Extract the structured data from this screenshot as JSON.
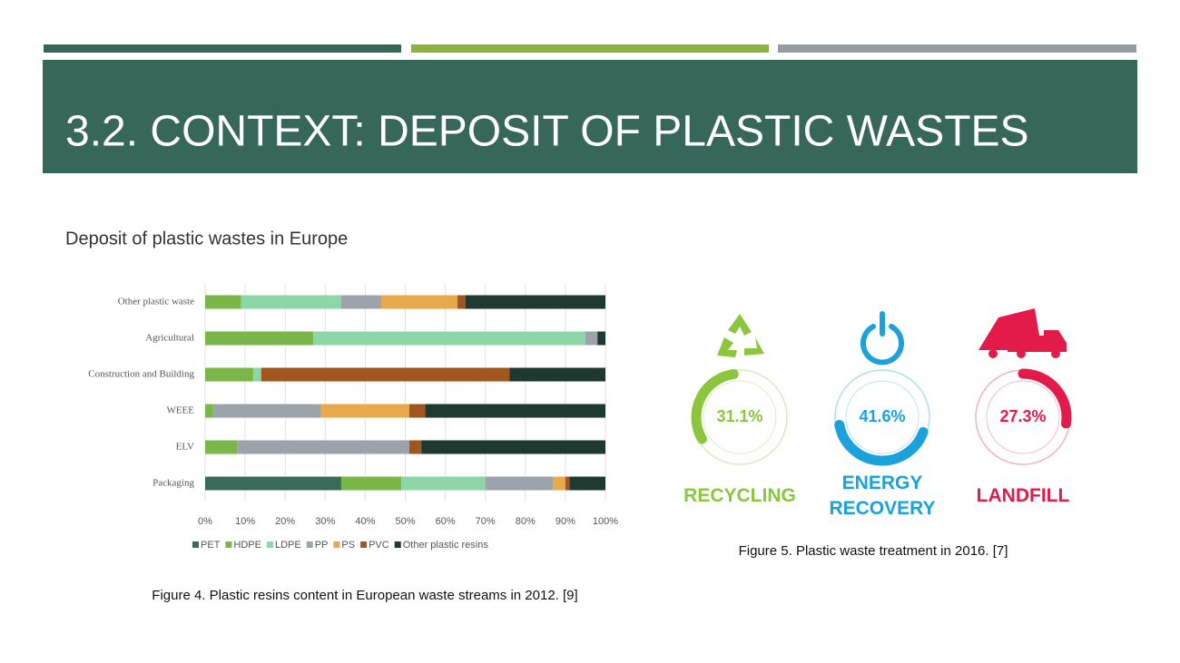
{
  "header": {
    "title": "3.2. CONTEXT: DEPOSIT OF PLASTIC WASTES"
  },
  "subtitle": "Deposit of plastic wastes in Europe",
  "chart_data": [
    {
      "type": "bar",
      "orientation": "horizontal",
      "stacked": true,
      "categories": [
        "Other plastic waste",
        "Agricultural",
        "Construction and Building",
        "WEEE",
        "ELV",
        "Packaging"
      ],
      "series": [
        {
          "name": "PET",
          "color": "#3a6b5a",
          "values": [
            0,
            0,
            0,
            0,
            0,
            34
          ]
        },
        {
          "name": "HDPE",
          "color": "#7ab648",
          "values": [
            9,
            27,
            12,
            2,
            8,
            15
          ]
        },
        {
          "name": "LDPE",
          "color": "#8dd6a8",
          "values": [
            25,
            68,
            2,
            0,
            0,
            21
          ]
        },
        {
          "name": "PP",
          "color": "#9ca3ab",
          "values": [
            10,
            3,
            0,
            27,
            43,
            17
          ]
        },
        {
          "name": "PS",
          "color": "#e8a84c",
          "values": [
            19,
            0,
            0,
            22,
            0,
            3
          ]
        },
        {
          "name": "PVC",
          "color": "#a0561e",
          "values": [
            2,
            0,
            62,
            4,
            3,
            1
          ]
        },
        {
          "name": "Other plastic resins",
          "color": "#1e3a30",
          "values": [
            35,
            2,
            24,
            45,
            46,
            9
          ]
        }
      ],
      "xlim": [
        0,
        100
      ],
      "xticks": [
        {
          "value": 0,
          "label": "0%"
        },
        {
          "value": 10,
          "label": "10%"
        },
        {
          "value": 20,
          "label": "20%"
        },
        {
          "value": 30,
          "label": "30%"
        },
        {
          "value": 40,
          "label": "40%"
        },
        {
          "value": 50,
          "label": "50%"
        },
        {
          "value": 60,
          "label": "60%"
        },
        {
          "value": 70,
          "label": "70%"
        },
        {
          "value": 80,
          "label": "80%"
        },
        {
          "value": 90,
          "label": "90%"
        },
        {
          "value": 100,
          "label": "100%"
        }
      ],
      "grid": true,
      "legend": "bottom"
    },
    {
      "type": "gauge",
      "categories": [
        "RECYCLING",
        "ENERGY RECOVERY",
        "LANDFILL"
      ],
      "values": [
        31.1,
        41.6,
        27.3
      ],
      "value_labels": [
        "31.1%",
        "41.6%",
        "27.3%"
      ],
      "colors": [
        "#8cc63f",
        "#1ba1dc",
        "#e31b4a"
      ]
    }
  ],
  "captions": [
    "Figure 4.  Plastic resins content in European waste streams in 2012. [9]",
    "Figure 5.  Plastic waste treatment in 2016. [7]"
  ]
}
